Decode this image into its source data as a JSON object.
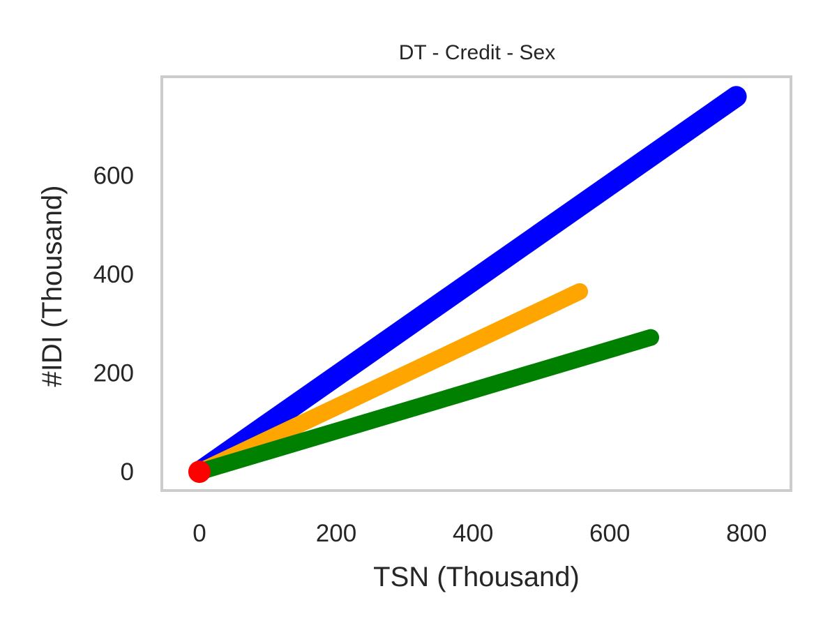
{
  "chart_data": {
    "type": "line",
    "title": "DT - Credit - Sex",
    "xlabel": "TSN (Thousand)",
    "ylabel": "#IDI (Thousand)",
    "xlim": [
      -55,
      865
    ],
    "ylim": [
      -38,
      800
    ],
    "xticks": [
      0,
      200,
      400,
      600,
      800
    ],
    "yticks": [
      0,
      200,
      400,
      600
    ],
    "grid": false,
    "legend": "none",
    "series": [
      {
        "color": "#0000ff",
        "x": [
          0,
          785
        ],
        "y": [
          0,
          760
        ]
      },
      {
        "color": "#ffa500",
        "x": [
          0,
          556
        ],
        "y": [
          0,
          365
        ]
      },
      {
        "color": "#008000",
        "x": [
          0,
          660
        ],
        "y": [
          0,
          272
        ]
      },
      {
        "color": "#ff0000",
        "marker_only": true,
        "x": [
          0
        ],
        "y": [
          0
        ]
      }
    ]
  }
}
